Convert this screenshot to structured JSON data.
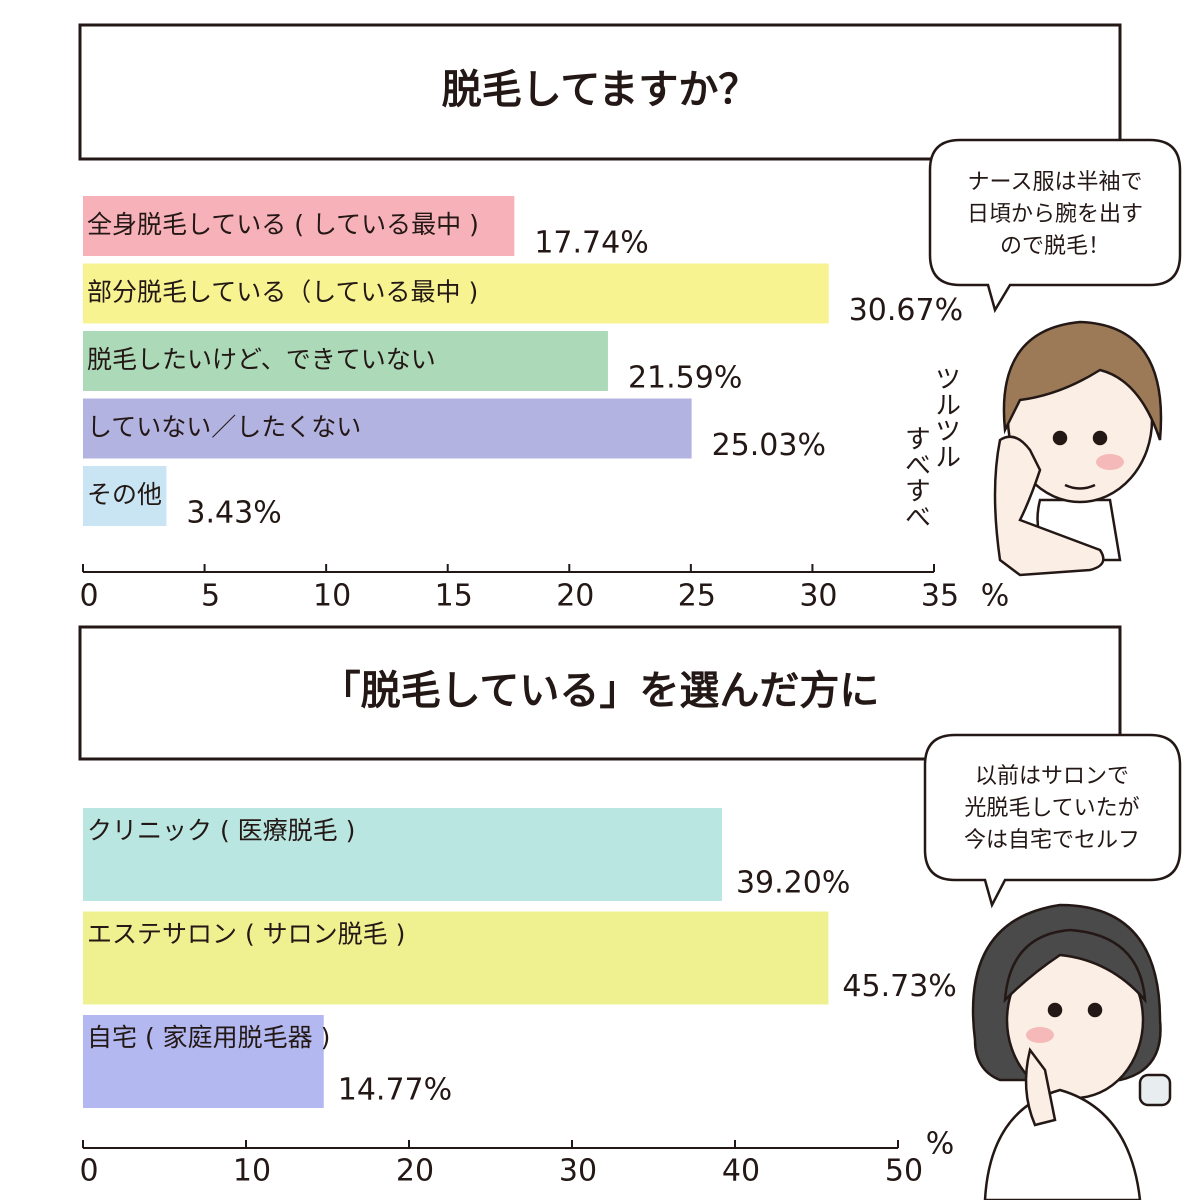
{
  "chart_data": [
    {
      "type": "bar",
      "orientation": "horizontal",
      "title": "脱毛してますか？",
      "categories": [
        "全身脱毛している ( している最中 )",
        "部分脱毛している（している最中 )",
        "脱毛したいけど、できていない",
        "していない／したくない",
        "その他"
      ],
      "values": [
        17.74,
        30.67,
        21.59,
        25.03,
        3.43
      ],
      "value_labels": [
        "17.74%",
        "30.67%",
        "21.59%",
        "25.03%",
        "3.43%"
      ],
      "colors": [
        "#f7b1b9",
        "#f7f390",
        "#acd9b8",
        "#b3b3e2",
        "#c9e5f3"
      ],
      "xlim": [
        0,
        35
      ],
      "xticks": [
        0,
        5,
        10,
        15,
        20,
        25,
        30,
        35
      ],
      "x_unit": "%",
      "callout": [
        "ナース服は半袖で",
        "日頃から腕を出す",
        "ので脱毛！"
      ],
      "annotations": [
        "ツルツル",
        "すべすべ"
      ]
    },
    {
      "type": "bar",
      "orientation": "horizontal",
      "title": "「脱毛している」を選んだ方に",
      "categories": [
        "クリニック ( 医療脱毛 )",
        "エステサロン ( サロン脱毛 )",
        "自宅 ( 家庭用脱毛器 )"
      ],
      "values": [
        39.2,
        45.73,
        14.77
      ],
      "value_labels": [
        "39.20%",
        "45.73%",
        "14.77%"
      ],
      "colors": [
        "#b9e6e0",
        "#eff090",
        "#b3b9f0"
      ],
      "xlim": [
        0,
        50
      ],
      "xticks": [
        0,
        10,
        20,
        30,
        40,
        50
      ],
      "x_unit": "%",
      "callout": [
        "以前はサロンで",
        "光脱毛していたが",
        "今は自宅でセルフ"
      ]
    }
  ]
}
